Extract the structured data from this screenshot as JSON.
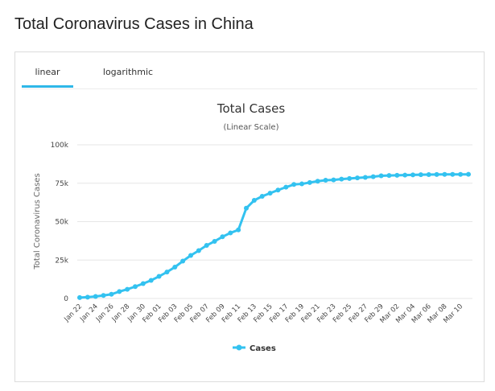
{
  "page": {
    "heading": "Total Coronavirus Cases in China"
  },
  "tabs": [
    {
      "label": "linear",
      "active": true
    },
    {
      "label": "logarithmic",
      "active": false
    }
  ],
  "colors": {
    "series": "#33c2f0",
    "active_tab": "#2fb7e8",
    "grid": "#e6e6e6"
  },
  "chart_data": {
    "type": "line",
    "title": "Total Cases",
    "subtitle": "(Linear Scale)",
    "ylabel": "Total Coronavirus Cases",
    "xlabel": "",
    "ylim": [
      0,
      100000
    ],
    "yticks": [
      0,
      25000,
      50000,
      75000,
      100000
    ],
    "ytick_labels": [
      "0",
      "25k",
      "50k",
      "75k",
      "100k"
    ],
    "grid": true,
    "legend_position": "bottom-center",
    "x": [
      "Jan 22",
      "Jan 23",
      "Jan 24",
      "Jan 25",
      "Jan 26",
      "Jan 27",
      "Jan 28",
      "Jan 29",
      "Jan 30",
      "Jan 31",
      "Feb 01",
      "Feb 02",
      "Feb 03",
      "Feb 04",
      "Feb 05",
      "Feb 06",
      "Feb 07",
      "Feb 08",
      "Feb 09",
      "Feb 10",
      "Feb 11",
      "Feb 12",
      "Feb 13",
      "Feb 14",
      "Feb 15",
      "Feb 16",
      "Feb 17",
      "Feb 18",
      "Feb 19",
      "Feb 20",
      "Feb 21",
      "Feb 22",
      "Feb 23",
      "Feb 24",
      "Feb 25",
      "Feb 26",
      "Feb 27",
      "Feb 28",
      "Feb 29",
      "Mar 01",
      "Mar 02",
      "Mar 03",
      "Mar 04",
      "Mar 05",
      "Mar 06",
      "Mar 07",
      "Mar 08",
      "Mar 09",
      "Mar 10",
      "Mar 11"
    ],
    "x_tick_labels": [
      "Jan 22",
      "Jan 24",
      "Jan 26",
      "Jan 28",
      "Jan 30",
      "Feb 01",
      "Feb 03",
      "Feb 05",
      "Feb 07",
      "Feb 09",
      "Feb 11",
      "Feb 13",
      "Feb 15",
      "Feb 17",
      "Feb 19",
      "Feb 21",
      "Feb 23",
      "Feb 25",
      "Feb 27",
      "Feb 29",
      "Mar 02",
      "Mar 04",
      "Mar 06",
      "Mar 08",
      "Mar 10"
    ],
    "series": [
      {
        "name": "Cases",
        "values": [
          571,
          830,
          1287,
          1975,
          2744,
          4515,
          5974,
          7711,
          9692,
          11791,
          14380,
          17205,
          20438,
          24324,
          28018,
          31161,
          34546,
          37198,
          40171,
          42638,
          44653,
          58761,
          63851,
          66492,
          68500,
          70548,
          72436,
          74185,
          74576,
          75465,
          76288,
          76936,
          77150,
          77658,
          78064,
          78497,
          78824,
          79251,
          79824,
          80026,
          80151,
          80270,
          80409,
          80552,
          80651,
          80695,
          80735,
          80754,
          80778,
          80793
        ]
      }
    ]
  }
}
